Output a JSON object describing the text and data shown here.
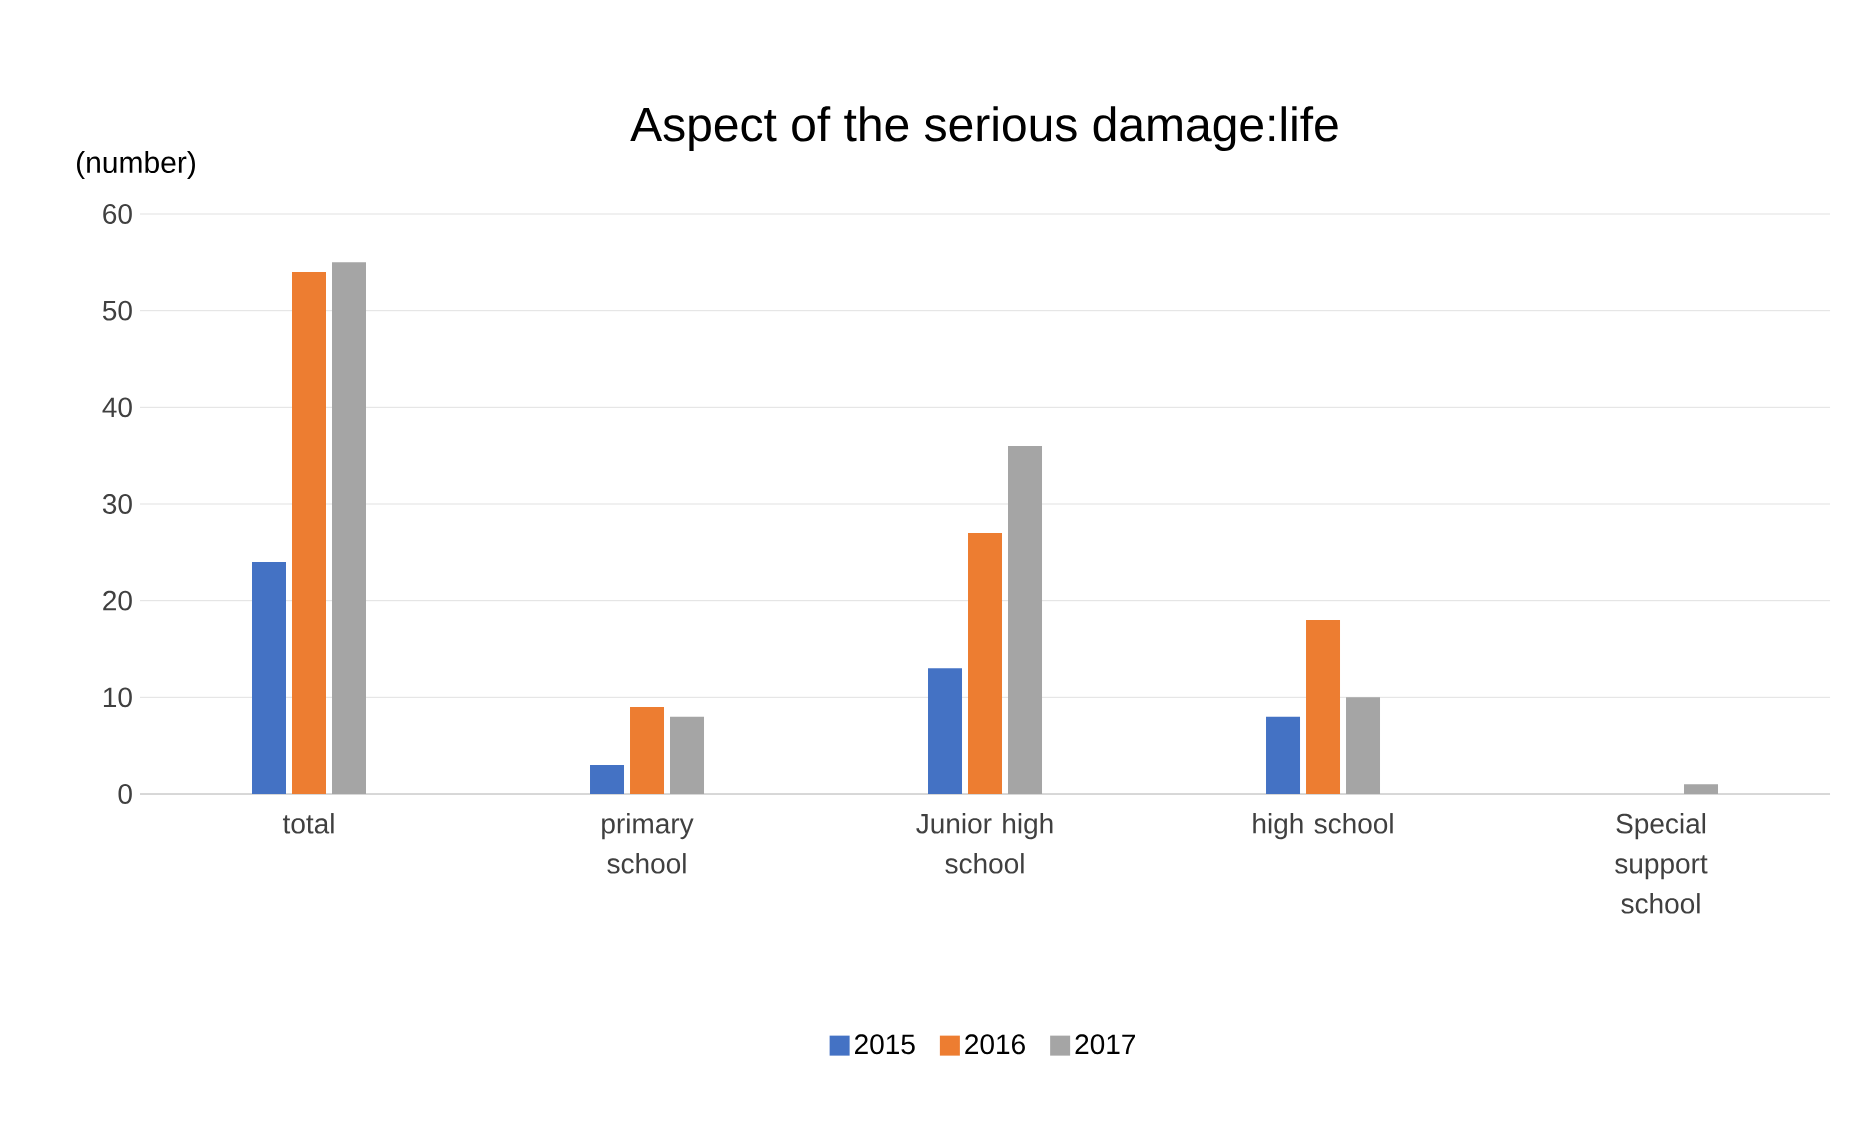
{
  "chart_data": {
    "type": "bar",
    "title": "Aspect of the serious damage:life",
    "ylabel": "(number)",
    "categories": [
      "total",
      "primary school",
      "Junior high school",
      "high school",
      "Special support school"
    ],
    "series": [
      {
        "name": "2015",
        "color": "#4472c4",
        "values": [
          24,
          3,
          13,
          8,
          0
        ]
      },
      {
        "name": "2016",
        "color": "#ed7d31",
        "values": [
          54,
          9,
          27,
          18,
          0
        ]
      },
      {
        "name": "2017",
        "color": "#a5a5a5",
        "values": [
          55,
          8,
          36,
          10,
          1
        ]
      }
    ],
    "ylim": [
      0,
      60
    ],
    "yticks": [
      0,
      10,
      20,
      30,
      40,
      50,
      60
    ],
    "grid": "y",
    "legend": "bottom"
  }
}
